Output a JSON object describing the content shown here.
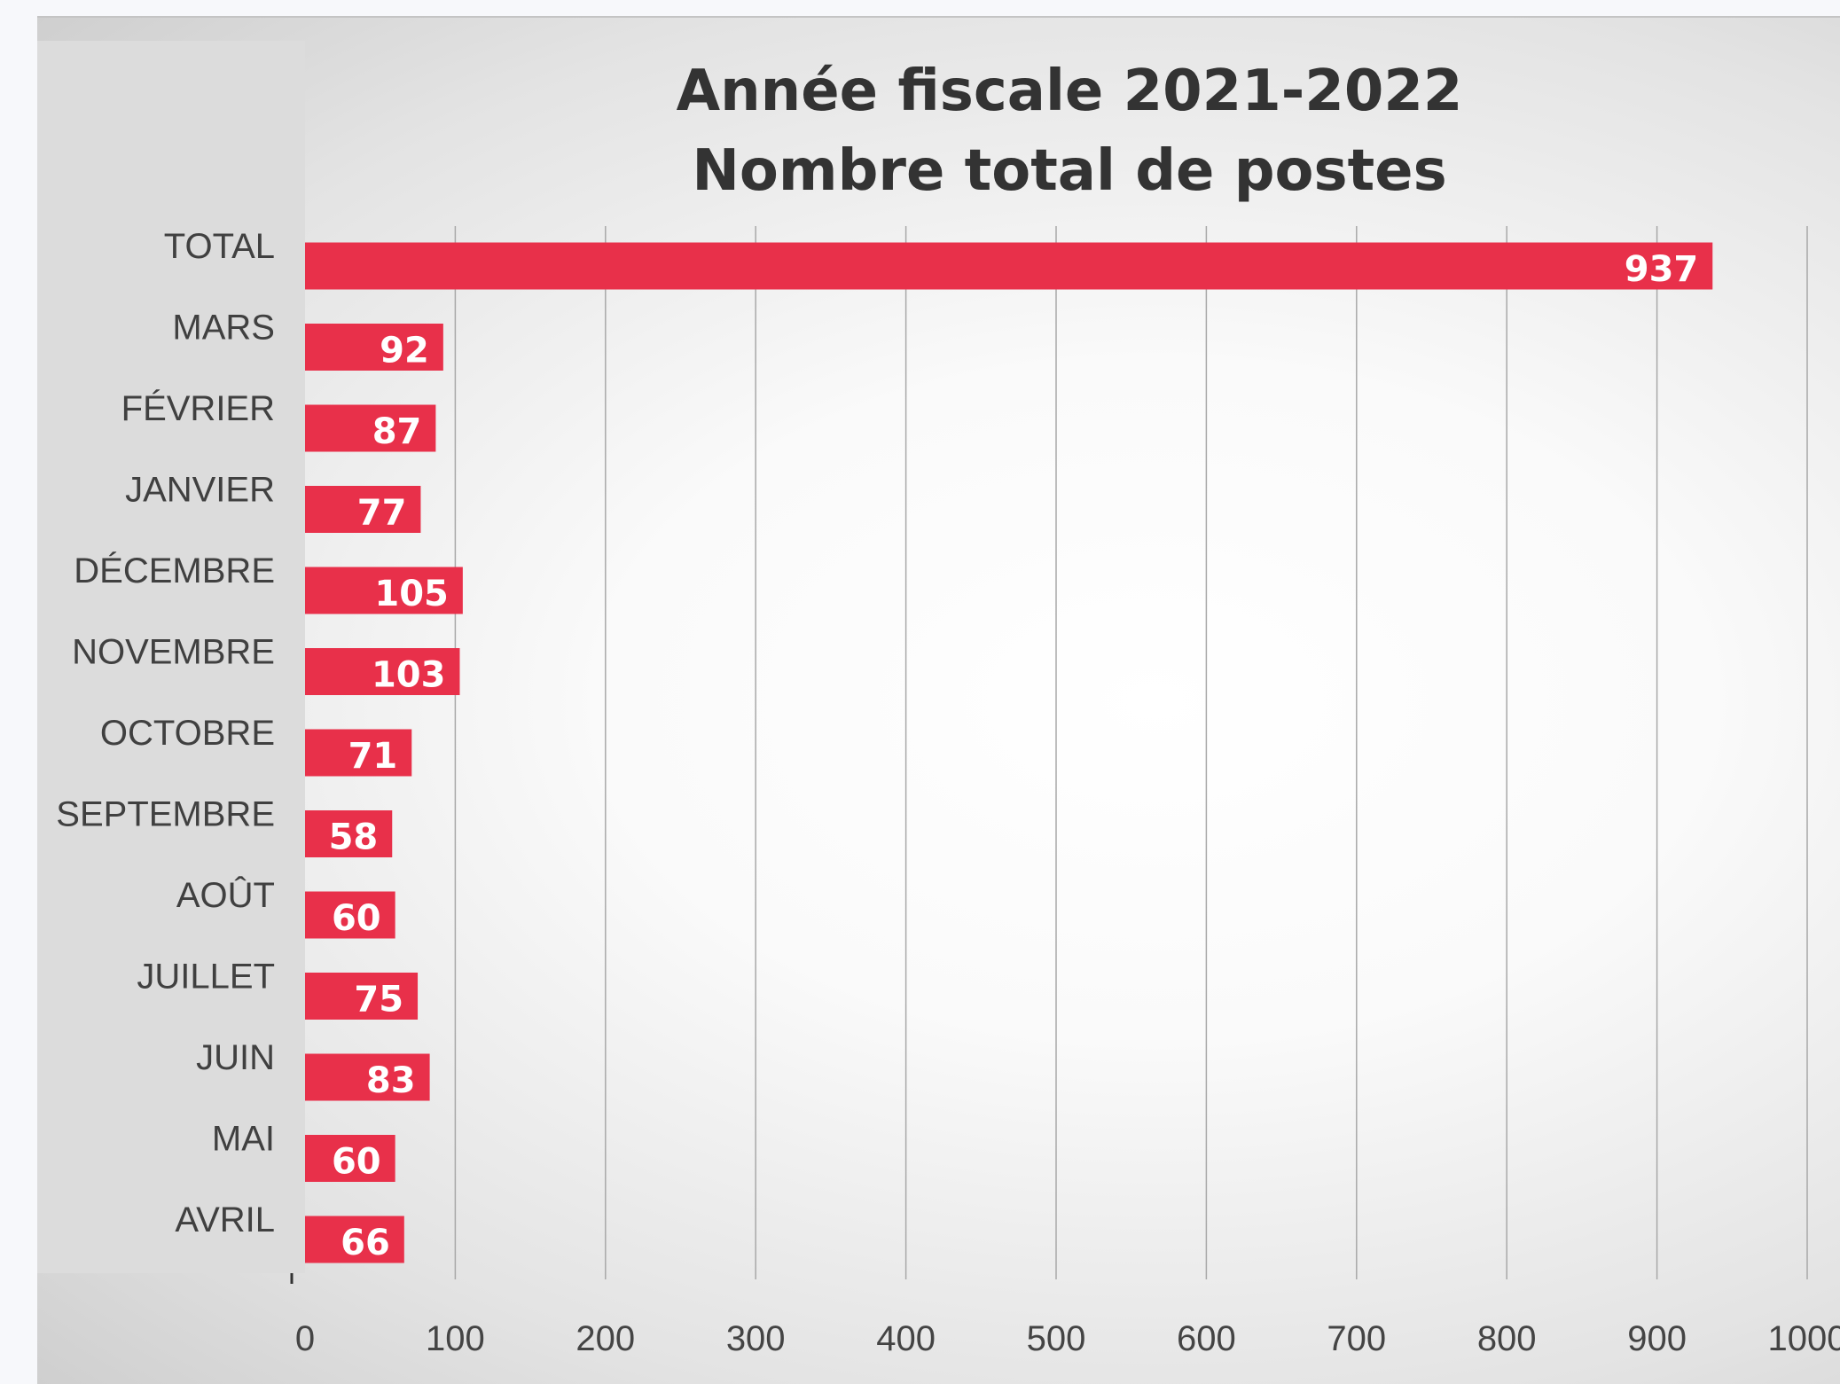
{
  "chart_data": {
    "type": "bar",
    "orientation": "horizontal",
    "title_lines": [
      "Année fiscale 2021-2022",
      "Nombre total de postes"
    ],
    "categories": [
      "TOTAL",
      "MARS",
      "FÉVRIER",
      "JANVIER",
      "DÉCEMBRE",
      "NOVEMBRE",
      "OCTOBRE",
      "SEPTEMBRE",
      "AOÛT",
      "JUILLET",
      "JUIN",
      "MAI",
      "AVRIL"
    ],
    "values": [
      937,
      92,
      87,
      77,
      105,
      103,
      71,
      58,
      60,
      75,
      83,
      60,
      66
    ],
    "data_labels": [
      "937",
      "92",
      "87",
      "77",
      "105",
      "103",
      "71",
      "58",
      "60",
      "75",
      "83",
      "60",
      "66"
    ],
    "xlim": [
      0,
      1000
    ],
    "xticks": [
      "0",
      "100",
      "200",
      "300",
      "400",
      "500",
      "600",
      "700",
      "800",
      "900",
      "1000"
    ],
    "xlabel": "",
    "ylabel": "",
    "grid": "vertical",
    "legend": "none",
    "bar_color": "#e8304a",
    "label_color": "#ffffff"
  }
}
